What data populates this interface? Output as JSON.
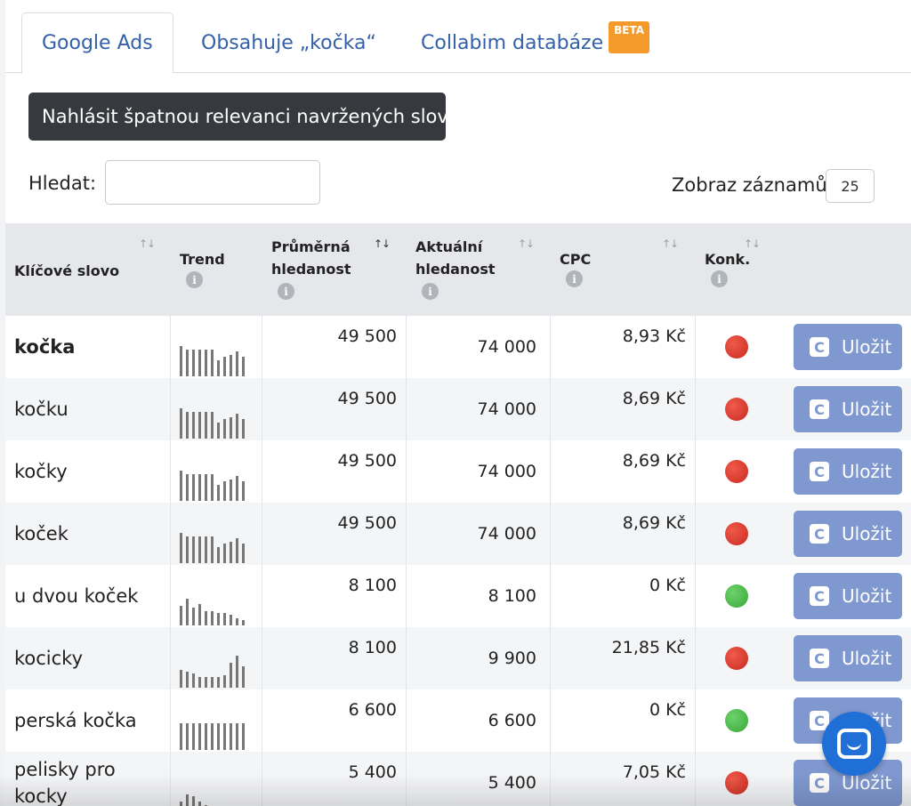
{
  "tabs": [
    {
      "label": "Google Ads",
      "active": true
    },
    {
      "label": "Obsahuje „kočka“",
      "active": false
    },
    {
      "label": "Collabim databáze",
      "active": false,
      "badge": "BETA"
    }
  ],
  "report_button": "Nahlásit špatnou relevanci navržených slov",
  "search": {
    "label": "Hledat:",
    "value": ""
  },
  "page_size": {
    "label": "Zobraz záznamů",
    "value": "25"
  },
  "columns": {
    "keyword": "Klíčové slovo",
    "trend": "Trend",
    "avg_search_1": "Průměrná",
    "avg_search_2": "hledanost",
    "cur_search_1": "Aktuální",
    "cur_search_2": "hledanost",
    "cpc": "CPC",
    "competition": "Konk.",
    "info": "i"
  },
  "save_label": "Uložit",
  "save_icon": "C",
  "rows": [
    {
      "keyword": "kočka",
      "bold": true,
      "avg": "49 500",
      "current": "74 000",
      "cpc": "8,93 Kč",
      "competition": "red",
      "trend": [
        34,
        30,
        30,
        30,
        30,
        30,
        18,
        22,
        24,
        28,
        22
      ]
    },
    {
      "keyword": "kočku",
      "bold": false,
      "avg": "49 500",
      "current": "74 000",
      "cpc": "8,69 Kč",
      "competition": "red",
      "trend": [
        34,
        30,
        30,
        30,
        30,
        30,
        18,
        22,
        24,
        28,
        22
      ]
    },
    {
      "keyword": "kočky",
      "bold": false,
      "avg": "49 500",
      "current": "74 000",
      "cpc": "8,69 Kč",
      "competition": "red",
      "trend": [
        34,
        30,
        30,
        30,
        30,
        30,
        18,
        22,
        24,
        28,
        22
      ]
    },
    {
      "keyword": "koček",
      "bold": false,
      "avg": "49 500",
      "current": "74 000",
      "cpc": "8,69 Kč",
      "competition": "red",
      "trend": [
        34,
        30,
        30,
        30,
        30,
        30,
        18,
        22,
        24,
        28,
        22
      ]
    },
    {
      "keyword": "u dvou koček",
      "bold": false,
      "avg": "8 100",
      "current": "8 100",
      "cpc": "0 Kč",
      "competition": "green",
      "trend": [
        22,
        30,
        20,
        24,
        16,
        16,
        14,
        14,
        12,
        8,
        6
      ]
    },
    {
      "keyword": "kocicky",
      "bold": false,
      "avg": "8 100",
      "current": "9 900",
      "cpc": "21,85 Kč",
      "competition": "red",
      "trend": [
        20,
        18,
        16,
        12,
        12,
        12,
        12,
        14,
        28,
        36,
        24
      ]
    },
    {
      "keyword": "perská kočka",
      "bold": false,
      "avg": "6 600",
      "current": "6 600",
      "cpc": "0 Kč",
      "competition": "green",
      "trend": [
        30,
        30,
        30,
        30,
        30,
        30,
        30,
        30,
        30,
        30,
        30
      ]
    },
    {
      "keyword": "pelisky pro kocky",
      "bold": false,
      "avg": "5 400",
      "current": "5 400",
      "cpc": "7,05 Kč",
      "competition": "red",
      "trend": [
        12,
        20,
        18,
        12,
        8,
        6,
        4,
        4,
        4,
        4,
        4
      ]
    }
  ],
  "chat_icon": "chat-bubble-icon"
}
